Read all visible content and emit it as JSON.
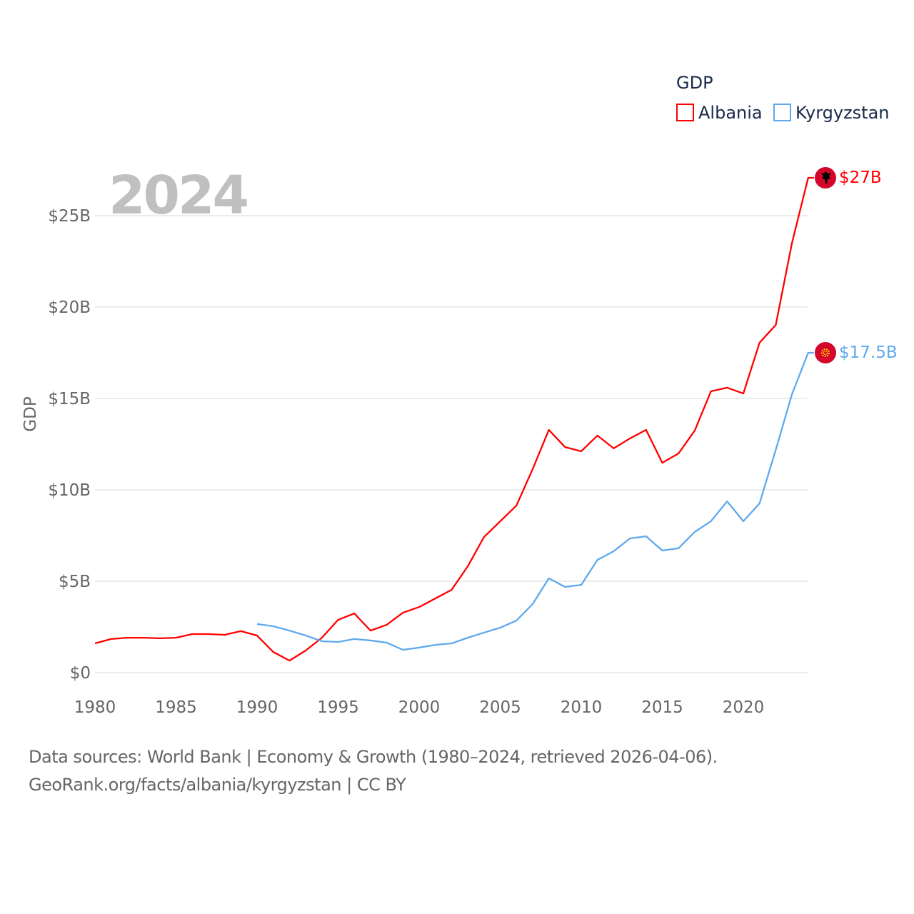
{
  "chart_data": {
    "type": "line",
    "title": "GDP",
    "year_label": "2024",
    "ylabel": "GDP",
    "xlabel": "",
    "xlim": [
      1980,
      2024
    ],
    "ylim": [
      0,
      27.5
    ],
    "x_ticks": [
      "1980",
      "1985",
      "1990",
      "1995",
      "2000",
      "2005",
      "2010",
      "2015",
      "2020"
    ],
    "y_ticks": [
      {
        "v": 0,
        "label": "$0"
      },
      {
        "v": 5,
        "label": "$5B"
      },
      {
        "v": 10,
        "label": "$10B"
      },
      {
        "v": 15,
        "label": "$15B"
      },
      {
        "v": 20,
        "label": "$20B"
      },
      {
        "v": 25,
        "label": "$25B"
      }
    ],
    "grid": true,
    "legend_placement": "top-right",
    "series": [
      {
        "name": "Albania",
        "color": "#ff0000",
        "end_label": "$27B",
        "flag": "albania-flag",
        "start": 1980,
        "values": [
          1.6,
          1.84,
          1.91,
          1.91,
          1.88,
          1.91,
          2.11,
          2.11,
          2.07,
          2.27,
          2.03,
          1.13,
          0.66,
          1.21,
          1.91,
          2.89,
          3.24,
          2.3,
          2.62,
          3.28,
          3.59,
          4.06,
          4.53,
          5.82,
          7.42,
          8.28,
          9.14,
          11.13,
          13.28,
          12.34,
          12.11,
          12.97,
          12.27,
          12.81,
          13.28,
          11.48,
          11.99,
          13.24,
          15.39,
          15.59,
          15.27,
          18.05,
          19.02,
          23.5,
          27.07
        ]
      },
      {
        "name": "Kyrgyzstan",
        "color": "#5ea9ee",
        "end_label": "$17.5B",
        "flag": "kyrgyzstan-flag",
        "start": 1990,
        "values": [
          2.66,
          2.54,
          2.3,
          2.03,
          1.72,
          1.68,
          1.84,
          1.76,
          1.64,
          1.25,
          1.37,
          1.52,
          1.6,
          1.91,
          2.19,
          2.46,
          2.85,
          3.75,
          5.16,
          4.69,
          4.8,
          6.17,
          6.64,
          7.34,
          7.46,
          6.68,
          6.8,
          7.7,
          8.28,
          9.37,
          8.28,
          9.26,
          12.19,
          15.23,
          17.5
        ]
      }
    ]
  },
  "footer": {
    "line1": "Data sources: World Bank | Economy & Growth (1980–2024, retrieved 2026-04-06).",
    "line2": "GeoRank.org/facts/albania/kyrgyzstan | CC BY"
  }
}
